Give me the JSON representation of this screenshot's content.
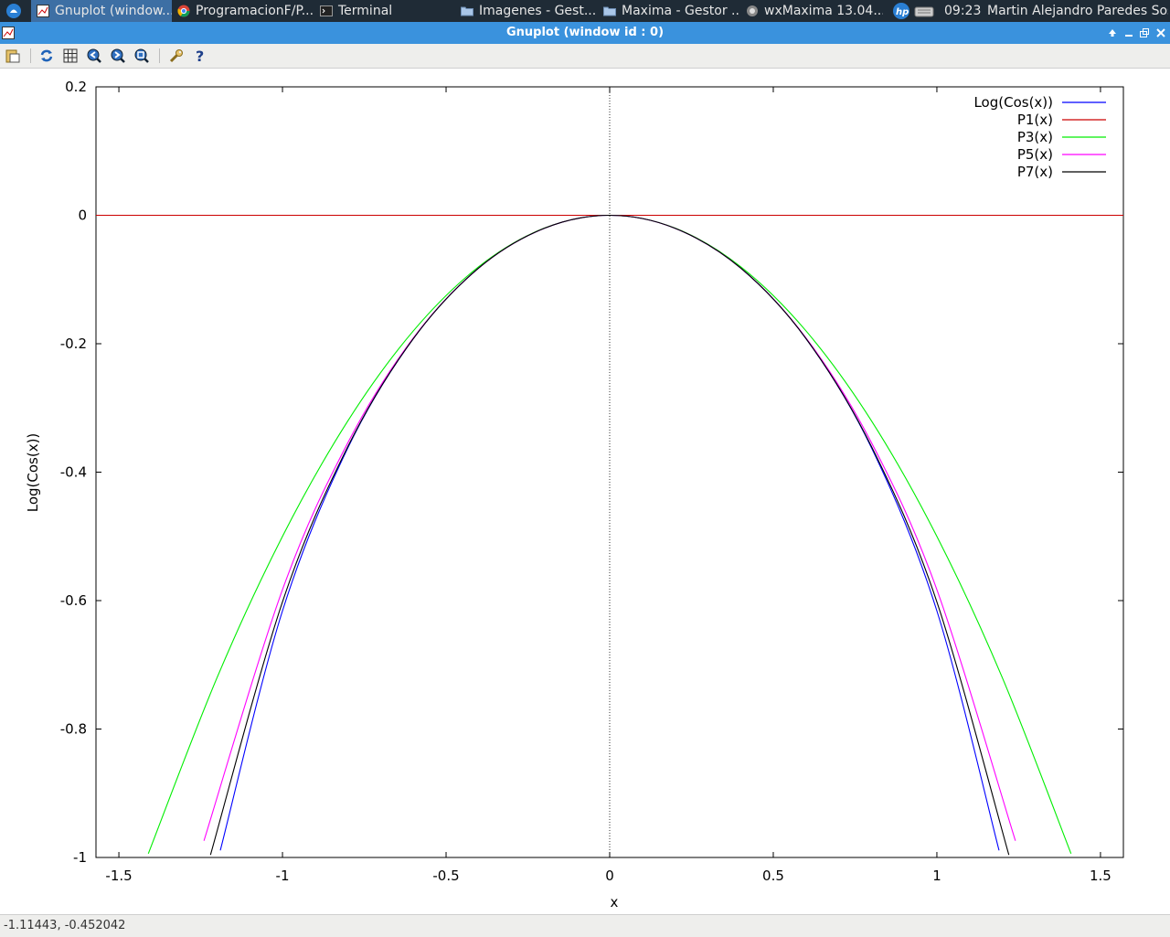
{
  "taskbar": {
    "items": [
      {
        "label": "Gnuplot (window..."
      },
      {
        "label": "ProgramacionF/P..."
      },
      {
        "label": "Terminal"
      },
      {
        "label": "Imagenes - Gest..."
      },
      {
        "label": "Maxima - Gestor ..."
      },
      {
        "label": "wxMaxima 13.04..."
      }
    ],
    "clock": "09:23",
    "user": "Martin Alejandro Paredes Sosa"
  },
  "window": {
    "title": "Gnuplot (window id : 0)"
  },
  "toolbar": {
    "icons": [
      "clipboard-icon",
      "replot-icon",
      "grid-icon",
      "zoom-previous-icon",
      "zoom-next-icon",
      "unzoom-icon",
      "settings-icon",
      "help-icon"
    ]
  },
  "statusbar": {
    "coords": "-1.11443, -0.452042"
  },
  "colors": {
    "log_cos": "#0000ff",
    "p1": "#cc0000",
    "p3": "#00ee00",
    "p5": "#ff00ff",
    "p7": "#000000"
  },
  "chart_data": {
    "type": "line",
    "xlabel": "x",
    "ylabel": "Log(Cos(x))",
    "xlim": [
      -1.57,
      1.57
    ],
    "ylim": [
      -1,
      0.2
    ],
    "xticks": [
      "-1.5",
      "-1",
      "-0.5",
      "0",
      "0.5",
      "1",
      "1.5"
    ],
    "yticks": [
      "0.2",
      "0",
      "-0.2",
      "-0.4",
      "-0.6",
      "-0.8",
      "-1"
    ],
    "legend_position": "top-right",
    "series": [
      {
        "name": "Log(Cos(x))",
        "color_key": "log_cos",
        "x": [
          -1.19,
          -1.0,
          -0.8,
          -0.6,
          -0.4,
          -0.2,
          0,
          0.2,
          0.4,
          0.6,
          0.8,
          1.0,
          1.19
        ],
        "y": [
          -0.989,
          -0.616,
          -0.362,
          -0.192,
          -0.082,
          -0.0203,
          0,
          -0.0203,
          -0.082,
          -0.192,
          -0.362,
          -0.616,
          -0.989
        ]
      },
      {
        "name": "P1(x)",
        "color_key": "p1",
        "x": [
          -1.57,
          1.57
        ],
        "y": [
          0,
          0
        ]
      },
      {
        "name": "P3(x)",
        "color_key": "p3",
        "x": [
          -1.41,
          -1.2,
          -1.0,
          -0.8,
          -0.6,
          -0.4,
          -0.2,
          0,
          0.2,
          0.4,
          0.6,
          0.8,
          1.0,
          1.2,
          1.41
        ],
        "y": [
          -0.994,
          -0.72,
          -0.5,
          -0.32,
          -0.18,
          -0.08,
          -0.02,
          0,
          -0.02,
          -0.08,
          -0.18,
          -0.32,
          -0.5,
          -0.72,
          -0.994
        ]
      },
      {
        "name": "P5(x)",
        "color_key": "p5",
        "x": [
          -1.24,
          -1.0,
          -0.8,
          -0.6,
          -0.4,
          -0.2,
          0,
          0.2,
          0.4,
          0.6,
          0.8,
          1.0,
          1.24
        ],
        "y": [
          -0.974,
          -0.583,
          -0.354,
          -0.191,
          -0.082,
          -0.0203,
          0,
          -0.0203,
          -0.082,
          -0.191,
          -0.354,
          -0.583,
          -0.974
        ]
      },
      {
        "name": "P7(x)",
        "color_key": "p7",
        "x": [
          -1.22,
          -1.0,
          -0.8,
          -0.6,
          -0.4,
          -0.2,
          0,
          0.2,
          0.4,
          0.6,
          0.8,
          1.0,
          1.22
        ],
        "y": [
          -0.996,
          -0.602,
          -0.36,
          -0.192,
          -0.082,
          -0.0203,
          0,
          -0.0203,
          -0.082,
          -0.192,
          -0.36,
          -0.602,
          -0.996
        ]
      }
    ]
  }
}
